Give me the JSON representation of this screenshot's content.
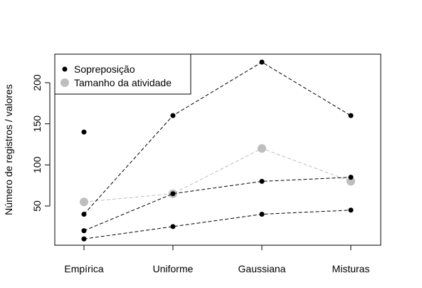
{
  "chart_data": {
    "type": "line",
    "title": "",
    "xlabel": "",
    "ylabel": "Número de registros / valores",
    "categories": [
      "Empírica",
      "Uniforme",
      "Gaussiana",
      "Misturas"
    ],
    "ylim": [
      0,
      235
    ],
    "yticks": [
      50,
      100,
      150,
      200
    ],
    "grid": false,
    "legend": {
      "position": "top-left",
      "entries": [
        {
          "label": "Sopreposição",
          "color": "#000000",
          "marker": "small-dot"
        },
        {
          "label": "Tamanho da atividade",
          "color": "#bebebe",
          "marker": "large-dot"
        }
      ]
    },
    "series": [
      {
        "group": "Sopreposição",
        "color": "#000000",
        "marker": "small-dot",
        "line": "dashed",
        "values": [
          40,
          160,
          225,
          160
        ]
      },
      {
        "group": "Sopreposição",
        "color": "#000000",
        "marker": "small-dot",
        "line": "dashed",
        "values": [
          20,
          65,
          80,
          85
        ]
      },
      {
        "group": "Sopreposição",
        "color": "#000000",
        "marker": "small-dot",
        "line": "dashed",
        "values": [
          10,
          25,
          40,
          45
        ]
      },
      {
        "group": "Sopreposição",
        "color": "#000000",
        "marker": "small-dot",
        "line": "none",
        "values": [
          140,
          null,
          null,
          null
        ]
      },
      {
        "group": "Tamanho da atividade",
        "color": "#bebebe",
        "marker": "large-dot",
        "line": "dashed",
        "values": [
          55,
          65,
          120,
          80
        ]
      }
    ]
  }
}
